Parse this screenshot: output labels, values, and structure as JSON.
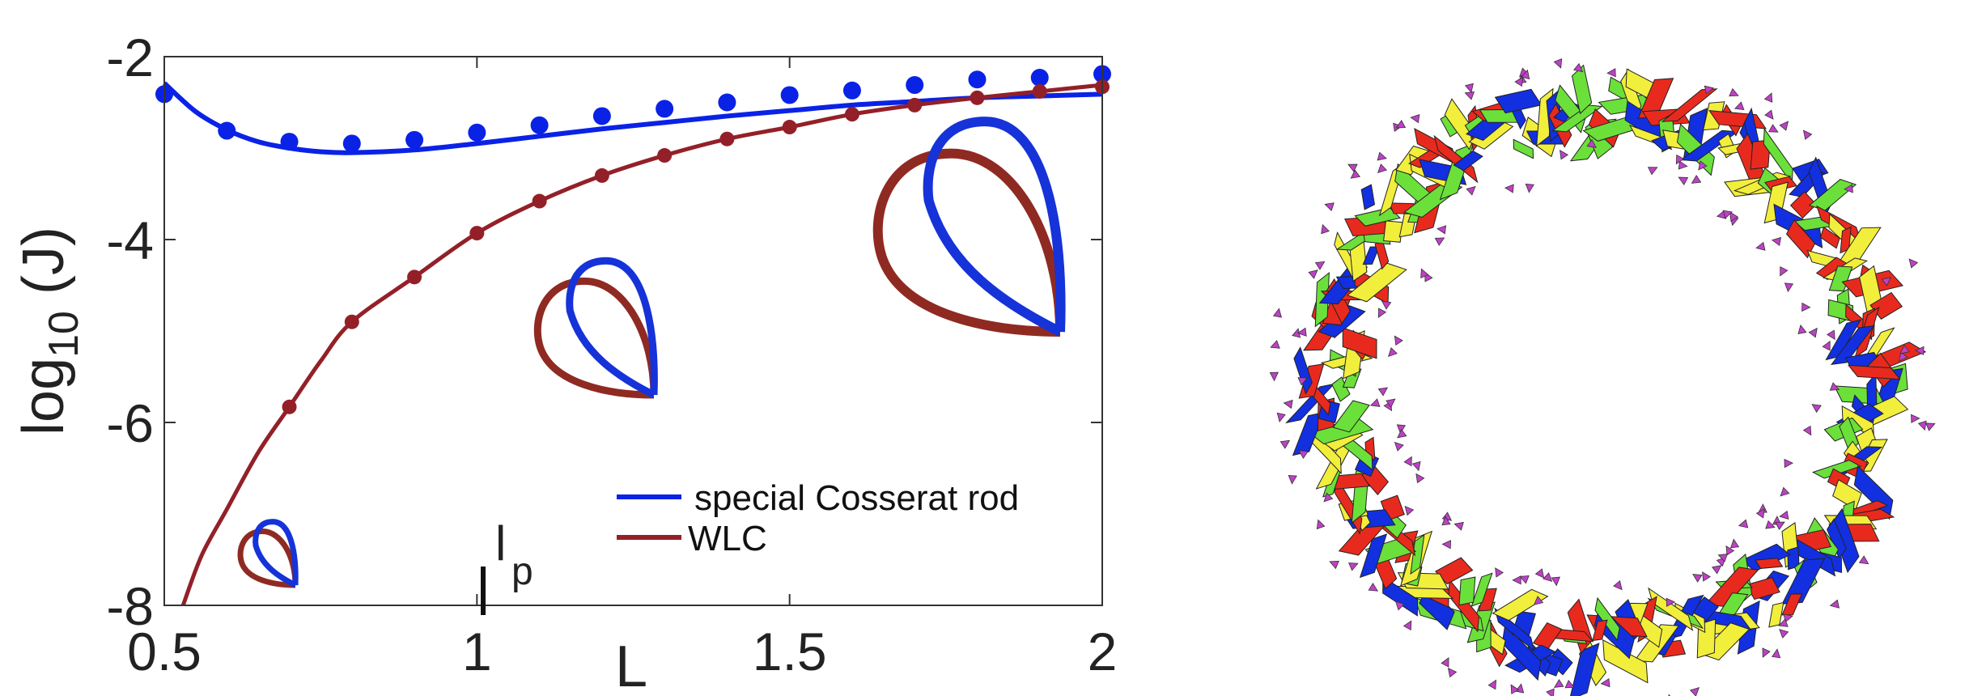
{
  "chart_data": {
    "type": "line",
    "xlabel": "L",
    "ylabel_main": "log",
    "ylabel_sub": "10",
    "ylabel_tail": " (J)",
    "xlim": [
      0.5,
      2
    ],
    "ylim": [
      -8,
      -2
    ],
    "xticks": [
      0.5,
      1,
      1.5,
      2
    ],
    "xtick_labels": [
      "0.5",
      "1",
      "1.5",
      "2"
    ],
    "yticks": [
      -8,
      -6,
      -4,
      -2
    ],
    "ytick_labels": [
      "-8",
      "-6",
      "-4",
      "-2"
    ],
    "grid": false,
    "legend_position": "bottom-right",
    "annotation": {
      "text": "l",
      "sub": "p",
      "x": 1.0
    },
    "series": [
      {
        "name": "special Cosserat rod",
        "color": "#0a22e6",
        "line_x": [
          0.5,
          0.55,
          0.6,
          0.65,
          0.7,
          0.75,
          0.8,
          0.9,
          1.0,
          1.1,
          1.2,
          1.3,
          1.4,
          1.5,
          1.6,
          1.7,
          1.8,
          1.9,
          2.0
        ],
        "line_y": [
          -2.29,
          -2.6,
          -2.8,
          -2.93,
          -3.0,
          -3.04,
          -3.05,
          -3.02,
          -2.95,
          -2.87,
          -2.79,
          -2.72,
          -2.65,
          -2.59,
          -2.53,
          -2.49,
          -2.45,
          -2.43,
          -2.41
        ],
        "points_x": [
          0.5,
          0.6,
          0.7,
          0.8,
          0.9,
          1.0,
          1.1,
          1.2,
          1.3,
          1.4,
          1.5,
          1.6,
          1.7,
          1.8,
          1.9,
          2.0
        ],
        "points_y": [
          -2.41,
          -2.81,
          -2.93,
          -2.95,
          -2.91,
          -2.83,
          -2.75,
          -2.65,
          -2.57,
          -2.5,
          -2.42,
          -2.37,
          -2.31,
          -2.25,
          -2.23,
          -2.19
        ]
      },
      {
        "name": "WLC",
        "color": "#932028",
        "line_x": [
          0.53,
          0.56,
          0.6,
          0.65,
          0.7,
          0.75,
          0.8,
          0.9,
          1.0,
          1.1,
          1.2,
          1.3,
          1.4,
          1.5,
          1.6,
          1.7,
          1.8,
          1.9,
          2.0
        ],
        "line_y": [
          -8.0,
          -7.45,
          -6.95,
          -6.33,
          -5.83,
          -5.33,
          -4.9,
          -4.41,
          -3.93,
          -3.58,
          -3.3,
          -3.08,
          -2.9,
          -2.77,
          -2.63,
          -2.53,
          -2.45,
          -2.38,
          -2.31
        ],
        "points_x": [
          0.7,
          0.8,
          0.9,
          1.0,
          1.1,
          1.2,
          1.3,
          1.4,
          1.5,
          1.6,
          1.7,
          1.8,
          1.9,
          2.0
        ],
        "points_y": [
          -5.83,
          -4.9,
          -4.41,
          -3.93,
          -3.58,
          -3.3,
          -3.08,
          -2.9,
          -2.77,
          -2.63,
          -2.53,
          -2.45,
          -2.38,
          -2.33
        ]
      }
    ]
  },
  "ring_colors": [
    "#e82a1e",
    "#6be03a",
    "#f2ee3c",
    "#1230e0"
  ],
  "arrow_color": "#c040c8"
}
